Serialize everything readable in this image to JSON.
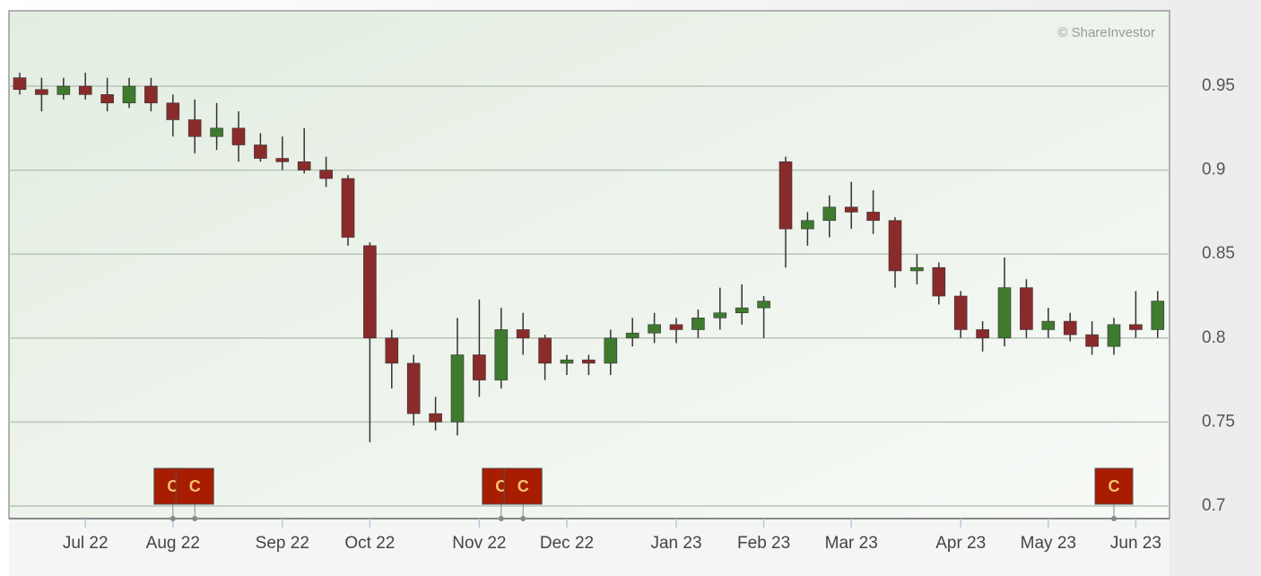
{
  "chart_data": {
    "type": "candlestick",
    "watermark": "© ShareInvestor",
    "categories": [
      null,
      null,
      null,
      "Jul 22",
      null,
      null,
      null,
      "Aug 22",
      null,
      null,
      null,
      null,
      "Sep 22",
      null,
      null,
      null,
      "Oct 22",
      null,
      null,
      null,
      null,
      "Nov 22",
      null,
      null,
      null,
      "Dec 22",
      null,
      null,
      null,
      null,
      "Jan 23",
      null,
      null,
      null,
      "Feb 23",
      null,
      null,
      null,
      "Mar 23",
      null,
      null,
      null,
      null,
      "Apr 23",
      null,
      null,
      null,
      "May 23",
      null,
      null,
      null,
      "Jun 23",
      null
    ],
    "open": [
      0.955,
      0.948,
      0.945,
      0.95,
      0.945,
      0.94,
      0.95,
      0.94,
      0.93,
      0.92,
      0.925,
      0.915,
      0.907,
      0.905,
      0.9,
      0.895,
      0.855,
      0.8,
      0.785,
      0.755,
      0.75,
      0.79,
      0.775,
      0.805,
      0.8,
      0.785,
      0.787,
      0.785,
      0.8,
      0.803,
      0.808,
      0.805,
      0.812,
      0.815,
      0.818,
      0.905,
      0.865,
      0.87,
      0.878,
      0.875,
      0.87,
      0.84,
      0.842,
      0.825,
      0.805,
      0.8,
      0.83,
      0.805,
      0.81,
      0.802,
      0.795,
      0.808,
      0.805
    ],
    "high": [
      0.958,
      0.955,
      0.955,
      0.958,
      0.955,
      0.955,
      0.955,
      0.945,
      0.942,
      0.94,
      0.935,
      0.922,
      0.92,
      0.925,
      0.908,
      0.897,
      0.857,
      0.805,
      0.79,
      0.765,
      0.812,
      0.823,
      0.818,
      0.815,
      0.802,
      0.79,
      0.79,
      0.805,
      0.812,
      0.815,
      0.812,
      0.817,
      0.83,
      0.832,
      0.825,
      0.908,
      0.875,
      0.885,
      0.893,
      0.888,
      0.872,
      0.85,
      0.845,
      0.828,
      0.81,
      0.848,
      0.835,
      0.818,
      0.815,
      0.81,
      0.812,
      0.828,
      0.828
    ],
    "low": [
      0.945,
      0.935,
      0.942,
      0.942,
      0.935,
      0.937,
      0.935,
      0.92,
      0.91,
      0.912,
      0.905,
      0.905,
      0.9,
      0.898,
      0.89,
      0.855,
      0.738,
      0.77,
      0.748,
      0.745,
      0.742,
      0.765,
      0.77,
      0.79,
      0.775,
      0.778,
      0.778,
      0.778,
      0.795,
      0.797,
      0.797,
      0.8,
      0.805,
      0.808,
      0.8,
      0.842,
      0.855,
      0.86,
      0.865,
      0.862,
      0.83,
      0.832,
      0.82,
      0.8,
      0.792,
      0.795,
      0.8,
      0.8,
      0.798,
      0.79,
      0.79,
      0.8,
      0.8
    ],
    "close": [
      0.948,
      0.945,
      0.95,
      0.945,
      0.94,
      0.95,
      0.94,
      0.93,
      0.92,
      0.925,
      0.915,
      0.907,
      0.905,
      0.9,
      0.895,
      0.86,
      0.8,
      0.785,
      0.755,
      0.75,
      0.79,
      0.775,
      0.805,
      0.8,
      0.785,
      0.787,
      0.785,
      0.8,
      0.803,
      0.808,
      0.805,
      0.812,
      0.815,
      0.818,
      0.822,
      0.865,
      0.87,
      0.878,
      0.875,
      0.87,
      0.84,
      0.842,
      0.825,
      0.805,
      0.8,
      0.83,
      0.805,
      0.81,
      0.802,
      0.795,
      0.808,
      0.805,
      0.822
    ],
    "up_color": "#3f7a2e",
    "down_color": "#8a2b2b",
    "events": [
      {
        "label": "C",
        "category": 7
      },
      {
        "label": "C",
        "category": 8
      },
      {
        "label": "C",
        "category": 22
      },
      {
        "label": "C",
        "category": 23
      },
      {
        "label": "C",
        "category": 50
      }
    ],
    "event_color": "#a81c00",
    "ylim": [
      0.6925,
      0.9949
    ],
    "yticks": [
      0.7,
      0.75,
      0.8,
      0.85,
      0.9,
      0.95
    ],
    "grid": true
  }
}
